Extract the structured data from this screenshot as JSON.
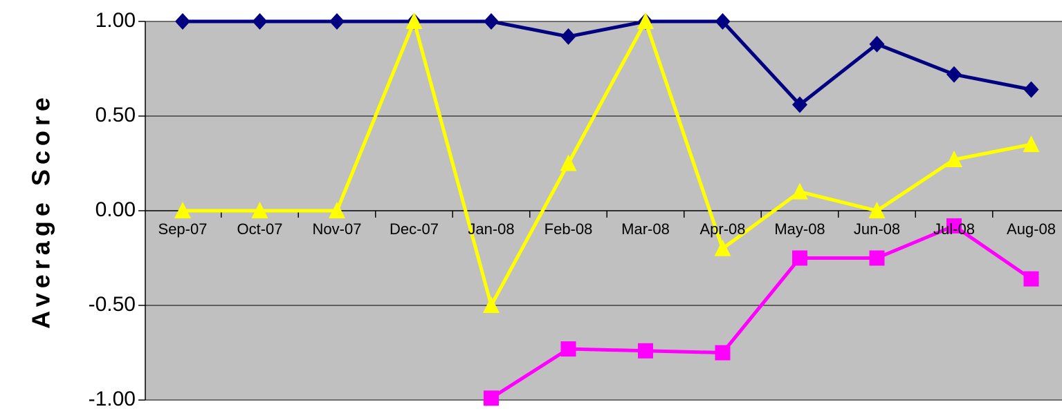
{
  "chart_data": {
    "type": "line",
    "title": "",
    "xlabel": "",
    "ylabel": "Average Score",
    "ylim": [
      -1.0,
      1.0
    ],
    "yticks": [
      "1.00",
      "0.50",
      "0.00",
      "-0.50",
      "-1.00"
    ],
    "ytick_values": [
      1.0,
      0.5,
      0.0,
      -0.5,
      -1.0
    ],
    "categories": [
      "Sep-07",
      "Oct-07",
      "Nov-07",
      "Dec-07",
      "Jan-08",
      "Feb-08",
      "Mar-08",
      "Apr-08",
      "May-08",
      "Jun-08",
      "Jul-08",
      "Aug-08"
    ],
    "grid": true,
    "legend": "none",
    "plot_background": "#c0c0c0",
    "series": [
      {
        "color": "#000080",
        "marker": "diamond",
        "values": [
          1.0,
          1.0,
          1.0,
          1.0,
          1.0,
          0.92,
          1.0,
          1.0,
          0.56,
          0.88,
          0.72,
          0.64
        ]
      },
      {
        "color": "#ffff00",
        "marker": "triangle",
        "values": [
          0.0,
          0.0,
          0.0,
          1.0,
          -0.5,
          0.25,
          1.0,
          -0.2,
          0.1,
          0.0,
          0.27,
          0.35
        ]
      },
      {
        "color": "#ff00ff",
        "marker": "square",
        "values": [
          null,
          null,
          null,
          null,
          -0.99,
          -0.73,
          -0.74,
          -0.75,
          -0.25,
          -0.25,
          -0.08,
          -0.36
        ]
      }
    ]
  }
}
